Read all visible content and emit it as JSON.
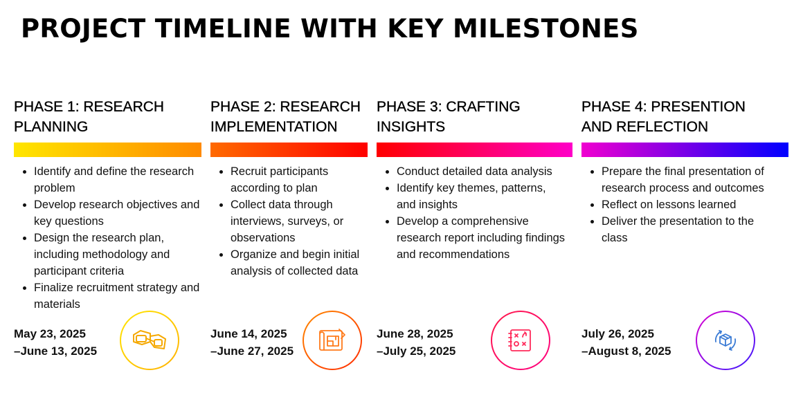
{
  "title": "PROJECT TIMELINE WITH KEY MILESTONES",
  "phases": [
    {
      "title_line1": "PHASE 1: RESEARCH",
      "title_line2": "PLANNING",
      "bullets": [
        "Identify and define the research problem",
        "Develop research objectives and key questions",
        "Design the research plan, including methodology and participant criteria",
        "Finalize recruitment strategy and materials"
      ],
      "date_start": "May 23, 2025",
      "date_end": "–June 13, 2025",
      "icon": "3d-glasses-icon",
      "gradient": [
        "#ffe600",
        "#ff8a00"
      ]
    },
    {
      "title_line1": "PHASE 2: RESEARCH",
      "title_line2": "IMPLEMENTATION",
      "bullets": [
        "Recruit participants according to plan",
        "Collect data through interviews, surveys, or observations",
        "Organize and begin initial analysis of collected data"
      ],
      "date_start": "June 14, 2025",
      "date_end": "–June 27, 2025",
      "icon": "blueprint-icon",
      "gradient": [
        "#ff6a00",
        "#ff0000"
      ]
    },
    {
      "title_line1": "PHASE 3: CRAFTING",
      "title_line2": "INSIGHTS",
      "bullets": [
        "Conduct detailed data analysis",
        "Identify key themes, patterns, and insights",
        "Develop a comprehensive research report including findings and recommendations"
      ],
      "date_start": "June 28, 2025",
      "date_end": "–July 25, 2025",
      "icon": "strategy-board-icon",
      "gradient": [
        "#ff0000",
        "#ff00c8"
      ]
    },
    {
      "title_line1": "PHASE 4: PRESENTION",
      "title_line2": "AND REFLECTION",
      "bullets": [
        "Prepare the final presentation of research process and outcomes",
        "Reflect on lessons learned",
        "Deliver the presentation to the class"
      ],
      "date_start": "July 26, 2025",
      "date_end": "–August 8, 2025",
      "icon": "cube-refresh-icon",
      "gradient": [
        "#f000d0",
        "#0000ff"
      ]
    }
  ]
}
